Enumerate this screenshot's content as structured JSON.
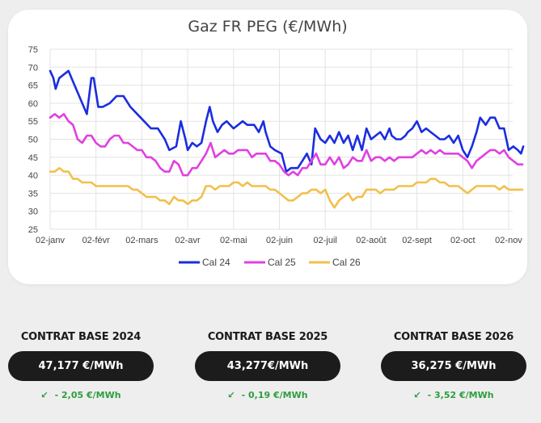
{
  "chart_data": {
    "type": "line",
    "title": "Gaz FR PEG (€/MWh)",
    "ylim": [
      25,
      75
    ],
    "yticks": [
      25,
      30,
      35,
      40,
      45,
      50,
      55,
      60,
      65,
      70,
      75
    ],
    "xticks": [
      "02-janv",
      "02-févr",
      "02-mars",
      "02-avr",
      "02-mai",
      "02-juin",
      "02-juil",
      "02-août",
      "02-sept",
      "02-oct",
      "02-nov"
    ],
    "grid": true,
    "legend": "bottom",
    "series": [
      {
        "name": "Cal 24",
        "color": "#1a2de0",
        "points": [
          [
            0,
            69
          ],
          [
            0.07,
            67
          ],
          [
            0.12,
            64
          ],
          [
            0.2,
            67
          ],
          [
            0.3,
            68
          ],
          [
            0.4,
            69
          ],
          [
            0.5,
            66
          ],
          [
            0.6,
            63
          ],
          [
            0.7,
            60
          ],
          [
            0.8,
            57
          ],
          [
            0.85,
            62
          ],
          [
            0.9,
            67
          ],
          [
            0.95,
            67
          ],
          [
            1.0,
            63
          ],
          [
            1.05,
            59
          ],
          [
            1.15,
            59
          ],
          [
            1.3,
            60
          ],
          [
            1.45,
            62
          ],
          [
            1.6,
            62
          ],
          [
            1.75,
            59
          ],
          [
            1.9,
            57
          ],
          [
            2.05,
            55
          ],
          [
            2.2,
            53
          ],
          [
            2.35,
            53
          ],
          [
            2.5,
            50
          ],
          [
            2.6,
            47
          ],
          [
            2.75,
            48
          ],
          [
            2.85,
            55
          ],
          [
            2.95,
            50
          ],
          [
            3.0,
            47
          ],
          [
            3.1,
            49
          ],
          [
            3.2,
            48
          ],
          [
            3.3,
            49
          ],
          [
            3.4,
            55
          ],
          [
            3.48,
            59
          ],
          [
            3.55,
            55
          ],
          [
            3.65,
            52
          ],
          [
            3.75,
            54
          ],
          [
            3.85,
            55
          ],
          [
            4.0,
            53
          ],
          [
            4.1,
            54
          ],
          [
            4.2,
            55
          ],
          [
            4.3,
            54
          ],
          [
            4.45,
            54
          ],
          [
            4.55,
            52
          ],
          [
            4.65,
            55
          ],
          [
            4.7,
            52
          ],
          [
            4.8,
            48
          ],
          [
            4.9,
            47
          ],
          [
            5.05,
            46
          ],
          [
            5.15,
            41
          ],
          [
            5.25,
            42
          ],
          [
            5.4,
            42
          ],
          [
            5.5,
            44
          ],
          [
            5.6,
            46
          ],
          [
            5.7,
            43
          ],
          [
            5.78,
            53
          ],
          [
            5.9,
            50
          ],
          [
            6.0,
            49
          ],
          [
            6.1,
            51
          ],
          [
            6.2,
            49
          ],
          [
            6.3,
            52
          ],
          [
            6.4,
            49
          ],
          [
            6.5,
            51
          ],
          [
            6.6,
            47
          ],
          [
            6.7,
            51
          ],
          [
            6.8,
            47
          ],
          [
            6.9,
            53
          ],
          [
            7.0,
            50
          ],
          [
            7.1,
            51
          ],
          [
            7.2,
            52
          ],
          [
            7.3,
            50
          ],
          [
            7.4,
            53
          ],
          [
            7.45,
            51
          ],
          [
            7.55,
            50
          ],
          [
            7.65,
            50
          ],
          [
            7.75,
            51
          ],
          [
            7.8,
            52
          ],
          [
            7.9,
            53
          ],
          [
            8.0,
            55
          ],
          [
            8.1,
            52
          ],
          [
            8.2,
            53
          ],
          [
            8.3,
            52
          ],
          [
            8.4,
            51
          ],
          [
            8.5,
            50
          ],
          [
            8.6,
            50
          ],
          [
            8.7,
            51
          ],
          [
            8.8,
            49
          ],
          [
            8.9,
            51
          ],
          [
            9.0,
            47
          ],
          [
            9.1,
            45
          ],
          [
            9.2,
            48
          ],
          [
            9.3,
            52
          ],
          [
            9.38,
            56
          ],
          [
            9.5,
            54
          ],
          [
            9.6,
            56
          ],
          [
            9.7,
            56
          ],
          [
            9.8,
            53
          ],
          [
            9.9,
            53
          ],
          [
            10.0,
            47
          ],
          [
            10.1,
            48
          ],
          [
            10.2,
            47
          ],
          [
            10.27,
            46
          ],
          [
            10.32,
            48
          ]
        ]
      },
      {
        "name": "Cal 25",
        "color": "#e040e0",
        "points": [
          [
            0,
            56
          ],
          [
            0.1,
            57
          ],
          [
            0.2,
            56
          ],
          [
            0.3,
            57
          ],
          [
            0.4,
            55
          ],
          [
            0.5,
            54
          ],
          [
            0.6,
            50
          ],
          [
            0.7,
            49
          ],
          [
            0.8,
            51
          ],
          [
            0.9,
            51
          ],
          [
            1.0,
            49
          ],
          [
            1.1,
            48
          ],
          [
            1.2,
            48
          ],
          [
            1.3,
            50
          ],
          [
            1.4,
            51
          ],
          [
            1.5,
            51
          ],
          [
            1.6,
            49
          ],
          [
            1.7,
            49
          ],
          [
            1.8,
            48
          ],
          [
            1.9,
            47
          ],
          [
            2.0,
            47
          ],
          [
            2.1,
            45
          ],
          [
            2.2,
            45
          ],
          [
            2.3,
            44
          ],
          [
            2.4,
            42
          ],
          [
            2.5,
            41
          ],
          [
            2.6,
            41
          ],
          [
            2.7,
            44
          ],
          [
            2.8,
            43
          ],
          [
            2.9,
            40
          ],
          [
            3.0,
            40
          ],
          [
            3.1,
            42
          ],
          [
            3.2,
            42
          ],
          [
            3.3,
            44
          ],
          [
            3.4,
            46
          ],
          [
            3.5,
            49
          ],
          [
            3.6,
            45
          ],
          [
            3.7,
            46
          ],
          [
            3.8,
            47
          ],
          [
            3.9,
            46
          ],
          [
            4.0,
            46
          ],
          [
            4.1,
            47
          ],
          [
            4.2,
            47
          ],
          [
            4.3,
            47
          ],
          [
            4.4,
            45
          ],
          [
            4.5,
            46
          ],
          [
            4.6,
            46
          ],
          [
            4.7,
            46
          ],
          [
            4.8,
            44
          ],
          [
            4.9,
            44
          ],
          [
            5.0,
            43
          ],
          [
            5.1,
            41
          ],
          [
            5.2,
            40
          ],
          [
            5.3,
            41
          ],
          [
            5.4,
            40
          ],
          [
            5.5,
            42
          ],
          [
            5.6,
            42
          ],
          [
            5.7,
            44
          ],
          [
            5.8,
            46
          ],
          [
            5.9,
            43
          ],
          [
            6.0,
            43
          ],
          [
            6.1,
            45
          ],
          [
            6.2,
            43
          ],
          [
            6.3,
            45
          ],
          [
            6.4,
            42
          ],
          [
            6.5,
            43
          ],
          [
            6.6,
            45
          ],
          [
            6.7,
            44
          ],
          [
            6.8,
            44
          ],
          [
            6.9,
            47
          ],
          [
            7.0,
            44
          ],
          [
            7.1,
            45
          ],
          [
            7.2,
            45
          ],
          [
            7.3,
            44
          ],
          [
            7.4,
            45
          ],
          [
            7.5,
            44
          ],
          [
            7.6,
            45
          ],
          [
            7.7,
            45
          ],
          [
            7.8,
            45
          ],
          [
            7.9,
            45
          ],
          [
            8.0,
            46
          ],
          [
            8.1,
            47
          ],
          [
            8.2,
            46
          ],
          [
            8.3,
            47
          ],
          [
            8.4,
            46
          ],
          [
            8.5,
            47
          ],
          [
            8.6,
            46
          ],
          [
            8.7,
            46
          ],
          [
            8.8,
            46
          ],
          [
            8.9,
            46
          ],
          [
            9.0,
            45
          ],
          [
            9.1,
            44
          ],
          [
            9.2,
            42
          ],
          [
            9.3,
            44
          ],
          [
            9.4,
            45
          ],
          [
            9.5,
            46
          ],
          [
            9.6,
            47
          ],
          [
            9.7,
            47
          ],
          [
            9.8,
            46
          ],
          [
            9.9,
            47
          ],
          [
            10.0,
            45
          ],
          [
            10.1,
            44
          ],
          [
            10.2,
            43
          ],
          [
            10.3,
            43
          ]
        ]
      },
      {
        "name": "Cal 26",
        "color": "#f2c04a",
        "points": [
          [
            0,
            41
          ],
          [
            0.1,
            41
          ],
          [
            0.2,
            42
          ],
          [
            0.3,
            41
          ],
          [
            0.4,
            41
          ],
          [
            0.5,
            39
          ],
          [
            0.6,
            39
          ],
          [
            0.7,
            38
          ],
          [
            0.8,
            38
          ],
          [
            0.9,
            38
          ],
          [
            1.0,
            37
          ],
          [
            1.1,
            37
          ],
          [
            1.2,
            37
          ],
          [
            1.3,
            37
          ],
          [
            1.4,
            37
          ],
          [
            1.5,
            37
          ],
          [
            1.6,
            37
          ],
          [
            1.7,
            37
          ],
          [
            1.8,
            36
          ],
          [
            1.9,
            36
          ],
          [
            2.0,
            35
          ],
          [
            2.1,
            34
          ],
          [
            2.2,
            34
          ],
          [
            2.3,
            34
          ],
          [
            2.4,
            33
          ],
          [
            2.5,
            33
          ],
          [
            2.6,
            32
          ],
          [
            2.7,
            34
          ],
          [
            2.8,
            33
          ],
          [
            2.9,
            33
          ],
          [
            3.0,
            32
          ],
          [
            3.1,
            33
          ],
          [
            3.2,
            33
          ],
          [
            3.3,
            34
          ],
          [
            3.4,
            37
          ],
          [
            3.5,
            37
          ],
          [
            3.6,
            36
          ],
          [
            3.7,
            37
          ],
          [
            3.8,
            37
          ],
          [
            3.9,
            37
          ],
          [
            4.0,
            38
          ],
          [
            4.1,
            38
          ],
          [
            4.2,
            37
          ],
          [
            4.3,
            38
          ],
          [
            4.4,
            37
          ],
          [
            4.5,
            37
          ],
          [
            4.6,
            37
          ],
          [
            4.7,
            37
          ],
          [
            4.8,
            36
          ],
          [
            4.9,
            36
          ],
          [
            5.0,
            35
          ],
          [
            5.1,
            34
          ],
          [
            5.2,
            33
          ],
          [
            5.3,
            33
          ],
          [
            5.4,
            34
          ],
          [
            5.5,
            35
          ],
          [
            5.6,
            35
          ],
          [
            5.7,
            36
          ],
          [
            5.8,
            36
          ],
          [
            5.9,
            35
          ],
          [
            6.0,
            36
          ],
          [
            6.1,
            33
          ],
          [
            6.2,
            31
          ],
          [
            6.3,
            33
          ],
          [
            6.4,
            34
          ],
          [
            6.5,
            35
          ],
          [
            6.6,
            33
          ],
          [
            6.7,
            34
          ],
          [
            6.8,
            34
          ],
          [
            6.9,
            36
          ],
          [
            7.0,
            36
          ],
          [
            7.1,
            36
          ],
          [
            7.2,
            35
          ],
          [
            7.3,
            36
          ],
          [
            7.4,
            36
          ],
          [
            7.5,
            36
          ],
          [
            7.6,
            37
          ],
          [
            7.7,
            37
          ],
          [
            7.8,
            37
          ],
          [
            7.9,
            37
          ],
          [
            8.0,
            38
          ],
          [
            8.1,
            38
          ],
          [
            8.2,
            38
          ],
          [
            8.3,
            39
          ],
          [
            8.4,
            39
          ],
          [
            8.5,
            38
          ],
          [
            8.6,
            38
          ],
          [
            8.7,
            37
          ],
          [
            8.8,
            37
          ],
          [
            8.9,
            37
          ],
          [
            9.0,
            36
          ],
          [
            9.1,
            35
          ],
          [
            9.2,
            36
          ],
          [
            9.3,
            37
          ],
          [
            9.4,
            37
          ],
          [
            9.5,
            37
          ],
          [
            9.6,
            37
          ],
          [
            9.7,
            37
          ],
          [
            9.8,
            36
          ],
          [
            9.9,
            37
          ],
          [
            10.0,
            36
          ],
          [
            10.1,
            36
          ],
          [
            10.2,
            36
          ],
          [
            10.3,
            36
          ]
        ]
      }
    ]
  },
  "contracts": [
    {
      "label": "CONTRAT BASE 2024",
      "price": "47,177 €/MWh",
      "change": "- 2,05 €/MWh"
    },
    {
      "label": "CONTRAT BASE 2025",
      "price": "43,277€/MWh",
      "change": "- 0,19 €/MWh"
    },
    {
      "label": "CONTRAT BASE 2026",
      "price": "36,275 €/MWh",
      "change": "- 3,52 €/MWh"
    }
  ]
}
